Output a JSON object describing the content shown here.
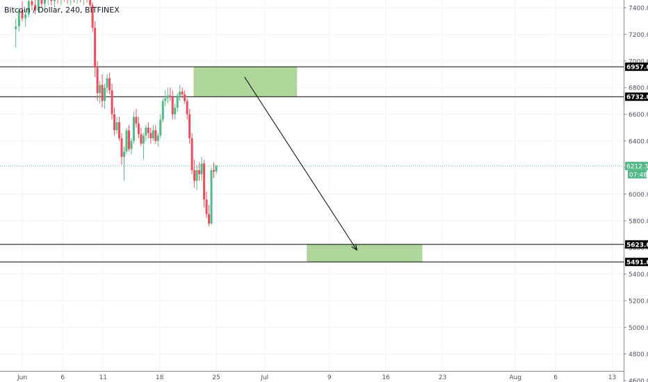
{
  "header": {
    "title": "Bitcoin / Dollar, 240, BITFINEX"
  },
  "chart_data": {
    "type": "candlestick",
    "title": "Bitcoin / Dollar, 240, BITFINEX",
    "ylim": [
      4600,
      7500
    ],
    "y_ticks": [
      4600,
      4800,
      5000,
      5200,
      5400,
      5600,
      5800,
      6000,
      6200,
      6400,
      6600,
      6800,
      7000,
      7200,
      7400
    ],
    "x_ticks": [
      {
        "label": "Jun",
        "day": 1
      },
      {
        "label": "6",
        "day": 6
      },
      {
        "label": "11",
        "day": 11
      },
      {
        "label": "18",
        "day": 18
      },
      {
        "label": "25",
        "day": 25
      },
      {
        "label": "Jul",
        "day": 31
      },
      {
        "label": "9",
        "day": 39
      },
      {
        "label": "16",
        "day": 46
      },
      {
        "label": "23",
        "day": 53
      },
      {
        "label": "Aug",
        "day": 62
      },
      {
        "label": "6",
        "day": 67
      },
      {
        "label": "13",
        "day": 74
      }
    ],
    "horizontal_levels": [
      6957.0,
      6732.0,
      5623.0,
      5491.0
    ],
    "level_labels": [
      "6957.0",
      "6732.0",
      "5623.0",
      "5491.0"
    ],
    "current_price": {
      "value": 6212.3,
      "label": "6212.3",
      "countdown": "07:48"
    },
    "zones": [
      {
        "from_day": 22.2,
        "to_day": 35.0,
        "low": 6732,
        "high": 6957,
        "color": "#a5d18f"
      },
      {
        "from_day": 36.2,
        "to_day": 50.5,
        "low": 5491,
        "high": 5623,
        "color": "#a5d18f"
      }
    ],
    "arrow": {
      "from": {
        "day": 28.5,
        "price": 6880
      },
      "to": {
        "day": 42.4,
        "price": 5580
      }
    },
    "colors": {
      "up": "#53b987",
      "down": "#eb4d5c",
      "current": "#53b987",
      "zone": "#a5d18f"
    },
    "candles": [
      [
        0.2,
        7240,
        7320,
        7100,
        7260
      ],
      [
        0.6,
        7260,
        7400,
        7220,
        7380
      ],
      [
        1.0,
        7380,
        7450,
        7300,
        7320
      ],
      [
        1.4,
        7320,
        7380,
        7260,
        7350
      ],
      [
        1.8,
        7350,
        7480,
        7330,
        7450
      ],
      [
        2.2,
        7450,
        7500,
        7380,
        7420
      ],
      [
        2.6,
        7420,
        7480,
        7350,
        7380
      ],
      [
        3.0,
        7380,
        7470,
        7360,
        7460
      ],
      [
        3.4,
        7460,
        7500,
        7400,
        7430
      ],
      [
        3.8,
        7430,
        7500,
        7380,
        7470
      ],
      [
        4.2,
        7470,
        7520,
        7420,
        7480
      ],
      [
        4.6,
        7480,
        7520,
        7420,
        7450
      ],
      [
        5.0,
        7450,
        7520,
        7400,
        7490
      ],
      [
        5.4,
        7490,
        7520,
        7430,
        7460
      ],
      [
        5.8,
        7460,
        7520,
        7420,
        7500
      ],
      [
        6.2,
        7500,
        7530,
        7450,
        7480
      ],
      [
        6.6,
        7480,
        7520,
        7430,
        7460
      ],
      [
        7.0,
        7460,
        7520,
        7420,
        7490
      ],
      [
        7.4,
        7490,
        7520,
        7440,
        7470
      ],
      [
        7.8,
        7470,
        7520,
        7430,
        7500
      ],
      [
        8.2,
        7500,
        7520,
        7440,
        7470
      ],
      [
        8.6,
        7470,
        7520,
        7420,
        7490
      ],
      [
        9.0,
        7490,
        7520,
        7440,
        7470
      ],
      [
        9.4,
        7470,
        7510,
        7400,
        7420
      ],
      [
        9.7,
        7420,
        7440,
        7220,
        7250
      ],
      [
        10.0,
        7250,
        7300,
        6880,
        6950
      ],
      [
        10.3,
        6950,
        7000,
        6700,
        6760
      ],
      [
        10.6,
        6760,
        6850,
        6680,
        6820
      ],
      [
        10.9,
        6820,
        6900,
        6650,
        6700
      ],
      [
        11.2,
        6700,
        6830,
        6640,
        6800
      ],
      [
        11.5,
        6800,
        6900,
        6760,
        6870
      ],
      [
        11.8,
        6870,
        6910,
        6750,
        6780
      ],
      [
        12.1,
        6780,
        6830,
        6560,
        6600
      ],
      [
        12.4,
        6600,
        6650,
        6440,
        6480
      ],
      [
        12.7,
        6480,
        6580,
        6450,
        6540
      ],
      [
        13.0,
        6540,
        6580,
        6400,
        6420
      ],
      [
        13.3,
        6420,
        6460,
        6220,
        6280
      ],
      [
        13.6,
        6280,
        6360,
        6100,
        6320
      ],
      [
        13.9,
        6320,
        6500,
        6300,
        6480
      ],
      [
        14.2,
        6480,
        6520,
        6320,
        6340
      ],
      [
        14.5,
        6340,
        6420,
        6300,
        6400
      ],
      [
        14.8,
        6400,
        6620,
        6380,
        6580
      ],
      [
        15.1,
        6580,
        6640,
        6500,
        6530
      ],
      [
        15.4,
        6530,
        6580,
        6420,
        6450
      ],
      [
        15.7,
        6450,
        6500,
        6360,
        6380
      ],
      [
        16.0,
        6380,
        6460,
        6260,
        6440
      ],
      [
        16.3,
        6440,
        6520,
        6400,
        6500
      ],
      [
        16.6,
        6500,
        6540,
        6420,
        6460
      ],
      [
        16.9,
        6460,
        6500,
        6380,
        6420
      ],
      [
        17.2,
        6420,
        6520,
        6400,
        6480
      ],
      [
        17.5,
        6480,
        6520,
        6380,
        6400
      ],
      [
        17.8,
        6400,
        6460,
        6360,
        6440
      ],
      [
        18.1,
        6440,
        6600,
        6420,
        6560
      ],
      [
        18.4,
        6560,
        6720,
        6540,
        6700
      ],
      [
        18.7,
        6700,
        6780,
        6660,
        6720
      ],
      [
        19.0,
        6720,
        6800,
        6680,
        6740
      ],
      [
        19.3,
        6740,
        6800,
        6700,
        6730
      ],
      [
        19.6,
        6730,
        6780,
        6560,
        6600
      ],
      [
        19.9,
        6600,
        6680,
        6560,
        6650
      ],
      [
        20.2,
        6650,
        6760,
        6620,
        6740
      ],
      [
        20.5,
        6740,
        6820,
        6700,
        6770
      ],
      [
        20.8,
        6770,
        6800,
        6720,
        6750
      ],
      [
        21.1,
        6750,
        6780,
        6680,
        6700
      ],
      [
        21.4,
        6700,
        6720,
        6560,
        6600
      ],
      [
        21.7,
        6600,
        6640,
        6380,
        6420
      ],
      [
        22.0,
        6420,
        6460,
        6150,
        6180
      ],
      [
        22.3,
        6180,
        6260,
        6050,
        6100
      ],
      [
        22.6,
        6100,
        6220,
        6030,
        6180
      ],
      [
        22.9,
        6180,
        6240,
        6100,
        6150
      ],
      [
        23.2,
        6150,
        6280,
        6100,
        6230
      ],
      [
        23.5,
        6230,
        6260,
        5900,
        5960
      ],
      [
        23.8,
        5960,
        6020,
        5820,
        5850
      ],
      [
        24.1,
        5850,
        5920,
        5760,
        5780
      ],
      [
        24.4,
        5780,
        6200,
        5770,
        6180
      ],
      [
        24.7,
        6180,
        6240,
        6120,
        6170
      ],
      [
        25.0,
        6170,
        6220,
        6150,
        6212
      ]
    ]
  }
}
